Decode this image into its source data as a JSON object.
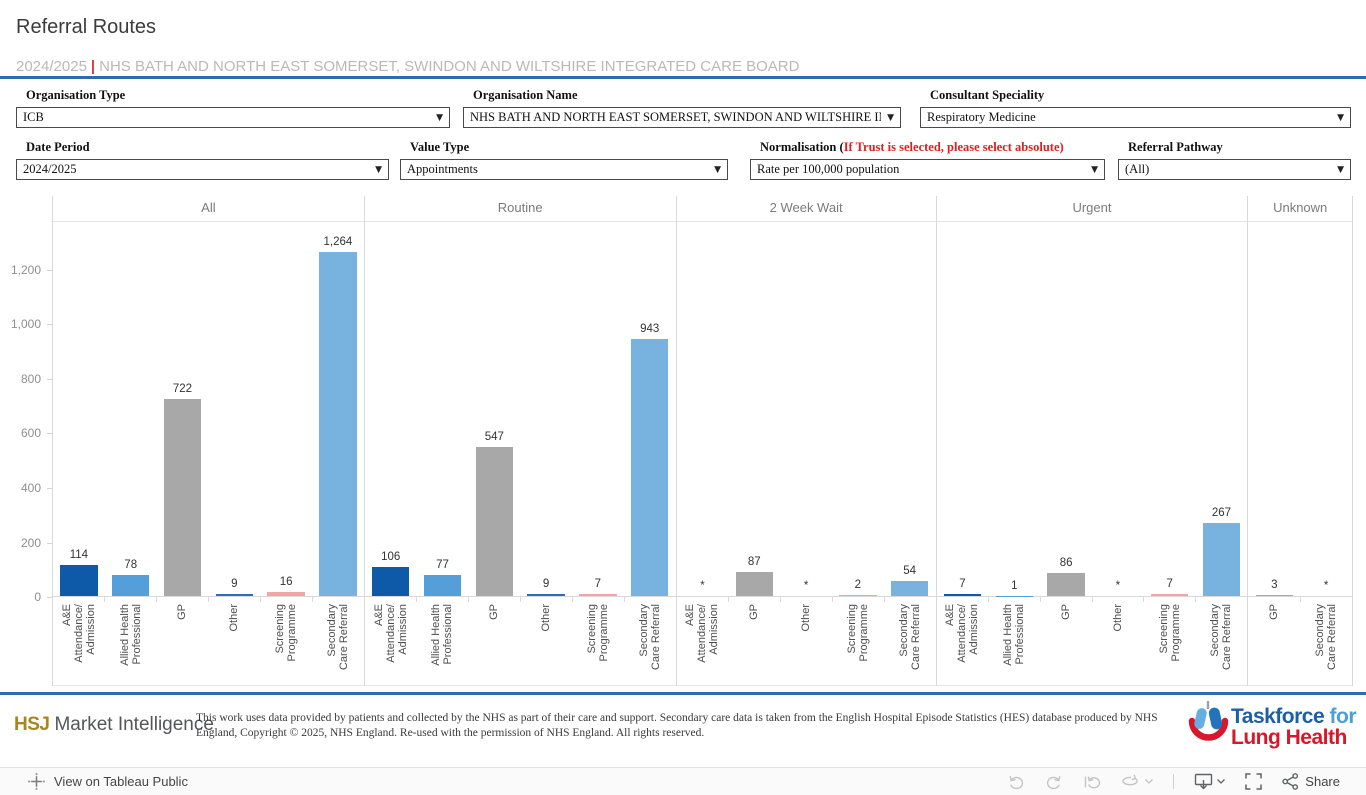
{
  "header": {
    "title": "Referral Routes",
    "subtitle_period": "2024/2025",
    "subtitle_separator": "|",
    "subtitle_org": "NHS BATH AND NORTH EAST SOMERSET, SWINDON AND WILTSHIRE INTEGRATED CARE BOARD",
    "accent_color": "#2E6CB1"
  },
  "filters": {
    "organisation_type": {
      "label": "Organisation Type",
      "value": "ICB"
    },
    "organisation_name": {
      "label": "Organisation Name",
      "value": "NHS BATH AND NORTH EAST SOMERSET, SWINDON AND WILTSHIRE INTEG…"
    },
    "consultant_speciality": {
      "label": "Consultant Speciality",
      "value": "Respiratory Medicine"
    },
    "date_period": {
      "label": "Date Period",
      "value": "2024/2025"
    },
    "value_type": {
      "label": "Value Type",
      "value": "Appointments"
    },
    "normalisation": {
      "label": "Normalisation (",
      "warning": "If Trust is selected, please select absolute)",
      "value": "Rate per 100,000 population"
    },
    "referral_pathway": {
      "label": "Referral Pathway",
      "value": "(All)"
    }
  },
  "chart_data": {
    "type": "bar",
    "title": "Referral Routes",
    "ylabel": "",
    "legend": "none",
    "grid": "off",
    "y_axis": {
      "max": 1376,
      "ticks": [
        0,
        200,
        400,
        600,
        800,
        1000,
        1200
      ],
      "tick_labels": [
        "0",
        "200",
        "400",
        "600",
        "800",
        "1,000",
        "1,200"
      ]
    },
    "suppressed_marker": "*",
    "panels": [
      {
        "name": "All",
        "bars": [
          {
            "category": "A&E\nAttendance/\nAdmission",
            "value": 114,
            "display": "114",
            "color": "#0E5AA8"
          },
          {
            "category": "Allied Health\nProfessional",
            "value": 78,
            "display": "78",
            "color": "#549FDA"
          },
          {
            "category": "GP",
            "value": 722,
            "display": "722",
            "color": "#A8A8A8"
          },
          {
            "category": "Other",
            "value": 9,
            "display": "9",
            "color": "#2E6DB5"
          },
          {
            "category": "Screening\nProgramme",
            "value": 16,
            "display": "16",
            "color": "#F2A4A6"
          },
          {
            "category": "Secondary\nCare Referral",
            "value": 1264,
            "display": "1,264",
            "color": "#78B3E0"
          }
        ]
      },
      {
        "name": "Routine",
        "bars": [
          {
            "category": "A&E\nAttendance/\nAdmission",
            "value": 106,
            "display": "106",
            "color": "#0E5AA8"
          },
          {
            "category": "Allied Health\nProfessional",
            "value": 77,
            "display": "77",
            "color": "#549FDA"
          },
          {
            "category": "GP",
            "value": 547,
            "display": "547",
            "color": "#A8A8A8"
          },
          {
            "category": "Other",
            "value": 9,
            "display": "9",
            "color": "#2E6DB5"
          },
          {
            "category": "Screening\nProgramme",
            "value": 7,
            "display": "7",
            "color": "#F2A4A6"
          },
          {
            "category": "Secondary\nCare Referral",
            "value": 943,
            "display": "943",
            "color": "#78B3E0"
          }
        ]
      },
      {
        "name": "2 Week Wait",
        "bars": [
          {
            "category": "A&E\nAttendance/\nAdmission",
            "value": 0,
            "display": "*",
            "color": "#0E5AA8"
          },
          {
            "category": "GP",
            "value": 87,
            "display": "87",
            "color": "#A8A8A8"
          },
          {
            "category": "Other",
            "value": 0,
            "display": "*",
            "color": "#2E6DB5"
          },
          {
            "category": "Screening\nProgramme",
            "value": 2,
            "display": "2",
            "color": "#F2A4A6"
          },
          {
            "category": "Secondary\nCare Referral",
            "value": 54,
            "display": "54",
            "color": "#78B3E0"
          }
        ]
      },
      {
        "name": "Urgent",
        "bars": [
          {
            "category": "A&E\nAttendance/\nAdmission",
            "value": 7,
            "display": "7",
            "color": "#0E5AA8"
          },
          {
            "category": "Allied Health\nProfessional",
            "value": 1,
            "display": "1",
            "color": "#549FDA"
          },
          {
            "category": "GP",
            "value": 86,
            "display": "86",
            "color": "#A8A8A8"
          },
          {
            "category": "Other",
            "value": 0,
            "display": "*",
            "color": "#2E6DB5"
          },
          {
            "category": "Screening\nProgramme",
            "value": 7,
            "display": "7",
            "color": "#F2A4A6"
          },
          {
            "category": "Secondary\nCare Referral",
            "value": 267,
            "display": "267",
            "color": "#78B3E0"
          }
        ]
      },
      {
        "name": "Unknown",
        "bars": [
          {
            "category": "GP",
            "value": 3,
            "display": "3",
            "color": "#A8A8A8"
          },
          {
            "category": "Secondary\nCare Referral",
            "value": 0,
            "display": "*",
            "color": "#78B3E0"
          }
        ]
      }
    ]
  },
  "footer": {
    "hsj_bold": "HSJ",
    "hsj_rest": "Market Intelligence",
    "disclaimer": "This work uses data provided by patients and collected by the NHS as part of their care and support. Secondary care data is taken from the English Hospital Episode Statistics (HES) database produced by NHS England, Copyright © 2025, NHS England. Re-used with the permission of NHS England. All rights reserved.",
    "logo": {
      "line1_main": "Taskforce",
      "line1_accent": " for",
      "line2": "Lung Health",
      "blue_dark": "#1B5FAA",
      "blue_light": "#4D9FD8",
      "red": "#D7182A"
    }
  },
  "tableau_bar": {
    "view_label": "View on Tableau Public",
    "share_label": "Share"
  }
}
